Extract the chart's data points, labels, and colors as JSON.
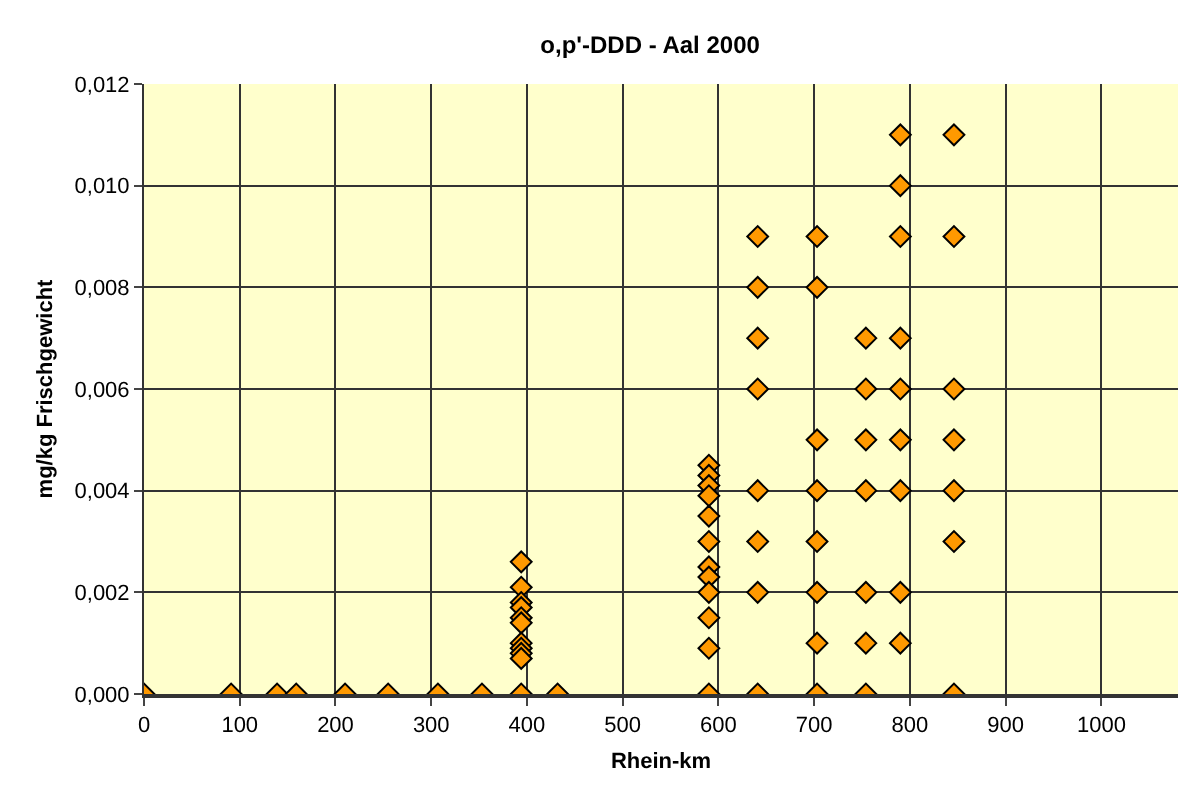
{
  "chart_data": {
    "type": "scatter",
    "title": "o,p'-DDD - Aal 2000",
    "xlabel": "Rhein-km",
    "ylabel": "mg/kg Frischgewicht",
    "x": [
      0,
      91,
      139,
      159,
      210,
      255,
      307,
      353,
      394,
      394,
      394,
      394,
      394,
      394,
      394,
      394,
      394,
      394,
      394,
      432,
      590,
      590,
      590,
      590,
      590,
      590,
      590,
      590,
      590,
      590,
      590,
      590,
      641,
      641,
      641,
      641,
      641,
      641,
      641,
      641,
      703,
      703,
      703,
      703,
      703,
      703,
      703,
      703,
      754,
      754,
      754,
      754,
      754,
      754,
      754,
      790,
      790,
      790,
      790,
      790,
      790,
      790,
      790,
      790,
      846,
      846,
      846,
      846,
      846,
      846,
      846
    ],
    "series": [
      {
        "color": "#ff9900",
        "values": [
          0,
          0,
          0,
          0,
          0,
          0,
          0,
          0,
          0,
          0.0026,
          0.0021,
          0.0018,
          0.0017,
          0.0015,
          0.0014,
          0.001,
          0.0009,
          0.0008,
          0.0007,
          0,
          0.0045,
          0.0043,
          0.0041,
          0.0039,
          0.0035,
          0.003,
          0.0025,
          0.0023,
          0.002,
          0.0015,
          0.0009,
          0,
          0.009,
          0.008,
          0.007,
          0.006,
          0.004,
          0.003,
          0.002,
          0,
          0.009,
          0.008,
          0.005,
          0.004,
          0.003,
          0.002,
          0.001,
          0,
          0.007,
          0.006,
          0.005,
          0.004,
          0.002,
          0.001,
          0,
          0.011,
          0.01,
          0.009,
          0.007,
          0.006,
          0.005,
          0.004,
          0.002,
          0.001,
          0.011,
          0.009,
          0.006,
          0.005,
          0.004,
          0.003,
          0
        ]
      }
    ],
    "xlim": [
      0,
      1080
    ],
    "xticks": [
      0,
      100,
      200,
      300,
      400,
      500,
      600,
      700,
      800,
      900,
      1000
    ],
    "ylim": [
      0,
      0.012
    ],
    "yticks": [
      {
        "value": 0,
        "label": "0,000"
      },
      {
        "value": 0.002,
        "label": "0,002"
      },
      {
        "value": 0.004,
        "label": "0,004"
      },
      {
        "value": 0.006,
        "label": "0,006"
      },
      {
        "value": 0.008,
        "label": "0,008"
      },
      {
        "value": 0.01,
        "label": "0,010"
      },
      {
        "value": 0.012,
        "label": "0,012"
      }
    ],
    "grid": true,
    "marker": "diamond"
  }
}
